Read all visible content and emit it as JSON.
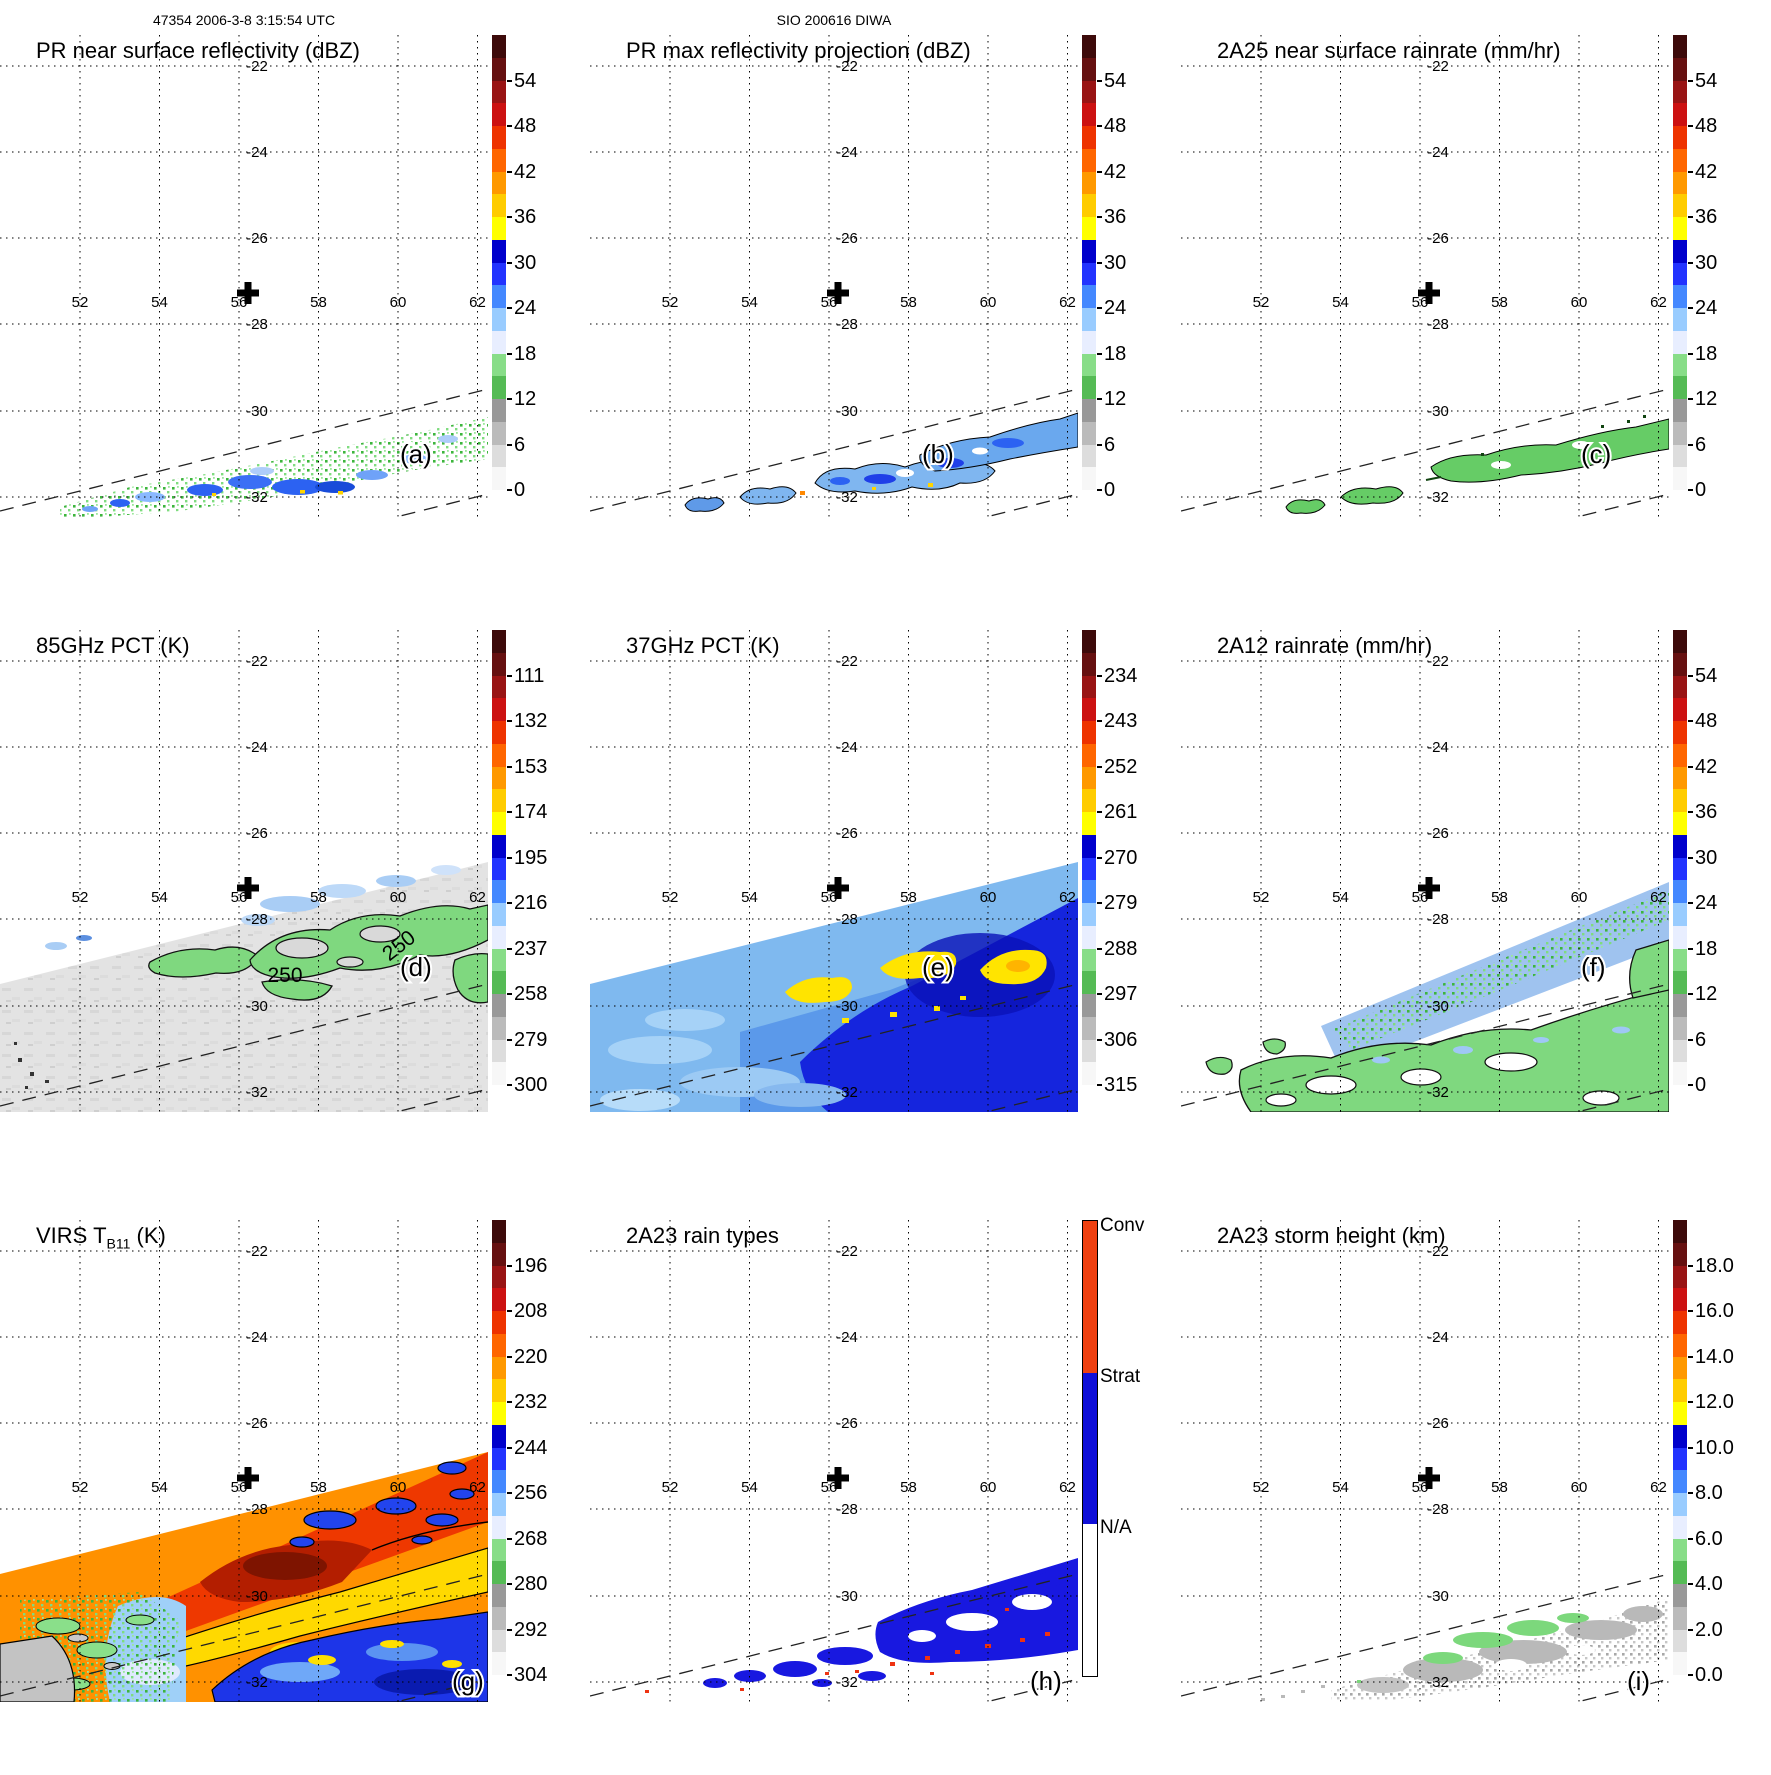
{
  "header": {
    "orbit_time": "47354 2006-3-8 3:15:54 UTC",
    "site": "SIO 200616 DIWA"
  },
  "axes": {
    "lon_labels": [
      "52",
      "54",
      "56",
      "58",
      "60",
      "62"
    ],
    "lat_labels": [
      "-22",
      "-24",
      "-26",
      "-28",
      "-30",
      "-32"
    ]
  },
  "panels": [
    {
      "letter": "(a)",
      "title": "PR near surface reflectivity (dBZ)"
    },
    {
      "letter": "(b)",
      "title": "PR max reflectivity projection (dBZ)"
    },
    {
      "letter": "(c)",
      "title": "2A25 near surface rainrate (mm/hr)"
    },
    {
      "letter": "(d)",
      "title": "85GHz PCT (K)",
      "contour_label": "250"
    },
    {
      "letter": "(e)",
      "title": "37GHz PCT (K)"
    },
    {
      "letter": "(f)",
      "title": "2A12 rainrate (mm/hr)"
    },
    {
      "letter": "(g)",
      "title_pre": "VIRS T",
      "title_sub": "B11",
      "title_post": " (K)"
    },
    {
      "letter": "(h)",
      "title": "2A23 rain types"
    },
    {
      "letter": "(i)",
      "title": "2A23 storm height (km)"
    }
  ],
  "colorbars": {
    "dbz": {
      "ticks": [
        "54",
        "48",
        "42",
        "36",
        "30",
        "24",
        "18",
        "12",
        "6",
        "0"
      ]
    },
    "pct85": {
      "ticks": [
        "111",
        "132",
        "153",
        "174",
        "195",
        "216",
        "237",
        "258",
        "279",
        "300"
      ]
    },
    "pct37": {
      "ticks": [
        "234",
        "243",
        "252",
        "261",
        "270",
        "279",
        "288",
        "297",
        "306",
        "315"
      ]
    },
    "virs": {
      "ticks": [
        "196",
        "208",
        "220",
        "232",
        "244",
        "256",
        "268",
        "280",
        "292",
        "304"
      ]
    },
    "height": {
      "ticks": [
        "18.0",
        "16.0",
        "14.0",
        "12.0",
        "10.0",
        "8.0",
        "6.0",
        "4.0",
        "2.0",
        "0.0"
      ]
    }
  },
  "colorbar_colors": [
    "#3d0a0a",
    "#661010",
    "#991414",
    "#cc1111",
    "#ee3300",
    "#ff6600",
    "#ff9900",
    "#ffcc00",
    "#ffff00",
    "#0000cc",
    "#2233ff",
    "#4488ff",
    "#99ccff",
    "#e8eeff",
    "#88dd88",
    "#55bb55",
    "#999999",
    "#bbbbbb",
    "#dddddd",
    "#f7f7f7"
  ],
  "raintype": {
    "labels": [
      "Conv",
      "Strat",
      "N/A"
    ],
    "colors": [
      "#ee4010",
      "#0f0fd8",
      "#ffffff"
    ]
  },
  "chart_data": {
    "type": "heatmap",
    "layout": "3x3 satellite map panels, shared lat/lon grid",
    "lon_range": [
      50.3,
      62.4
    ],
    "lat_range": [
      -33.2,
      -21.2
    ],
    "gridline_lons": [
      52,
      54,
      56,
      58,
      60,
      62
    ],
    "gridline_lats": [
      -22,
      -24,
      -26,
      -28,
      -30,
      -32
    ],
    "marker_lonlat": [
      56.3,
      -27.4
    ],
    "panels": [
      {
        "letter": "(a)",
        "title": "PR near surface reflectivity (dBZ)",
        "units": "dBZ",
        "scale_ticks": [
          54,
          48,
          42,
          36,
          30,
          24,
          18,
          12,
          6,
          0
        ],
        "features": "scattered 15-35 dBZ echoes in narrow PR swath running WSW-ENE near 30-32S"
      },
      {
        "letter": "(b)",
        "title": "PR max reflectivity projection (dBZ)",
        "units": "dBZ",
        "scale_ticks": [
          54,
          48,
          42,
          36,
          30,
          24,
          18,
          12,
          6,
          0
        ],
        "features": "contoured blue 20-35 dBZ regions with a few 36-45 dBZ cores in PR swath"
      },
      {
        "letter": "(c)",
        "title": "2A25 near surface rainrate (mm/hr)",
        "units": "mm/hr",
        "scale_ticks": [
          54,
          48,
          42,
          36,
          30,
          24,
          18,
          12,
          6,
          0
        ],
        "features": "light rain (green, <6 mm/hr) patches outlined in black within PR swath"
      },
      {
        "letter": "(d)",
        "title": "85GHz PCT (K)",
        "units": "K",
        "scale_ticks": [
          111,
          132,
          153,
          174,
          195,
          216,
          237,
          258,
          279,
          300
        ],
        "contour_label": 250,
        "features": "wide TMI swath, mostly 258-300 K gray, 237-258 K green areas with 250 K contours, small 216-237 K blue patches"
      },
      {
        "letter": "(e)",
        "title": "37GHz PCT (K)",
        "units": "K",
        "scale_ticks": [
          234,
          243,
          252,
          261,
          270,
          279,
          288,
          297,
          306,
          315
        ],
        "features": "blue field 266-282 K over wide swath, yellow 258-264 K patches near 28S 56-62E"
      },
      {
        "letter": "(f)",
        "title": "2A12 rainrate (mm/hr)",
        "units": "mm/hr",
        "scale_ticks": [
          54,
          48,
          42,
          36,
          30,
          24,
          18,
          12,
          6,
          0
        ],
        "features": "broad green <6 mm/hr rain area with light blue 18-27 mm/hr band in northeast"
      },
      {
        "letter": "(g)",
        "title": "VIRS TB11 (K)",
        "units": "K",
        "scale_ticks": [
          196,
          208,
          220,
          232,
          244,
          256,
          268,
          280,
          292,
          304
        ],
        "features": "cold cloud tops 200-232 K (red/orange/yellow) northeast, 244-256 K blue south, 268-304 K green/gray southwest"
      },
      {
        "letter": "(h)",
        "title": "2A23 rain types",
        "categories": [
          "Conv",
          "Strat",
          "N/A"
        ],
        "features": "mostly stratiform (blue) pixels with scattered convective (red) pixels in PR swath"
      },
      {
        "letter": "(i)",
        "title": "2A23 storm height (km)",
        "units": "km",
        "scale_ticks": [
          18,
          16,
          14,
          12,
          10,
          8,
          6,
          4,
          2,
          0
        ],
        "features": "storm heights mostly 2-5 km (gray) with 5-7 km (green) patches in PR swath"
      }
    ]
  }
}
